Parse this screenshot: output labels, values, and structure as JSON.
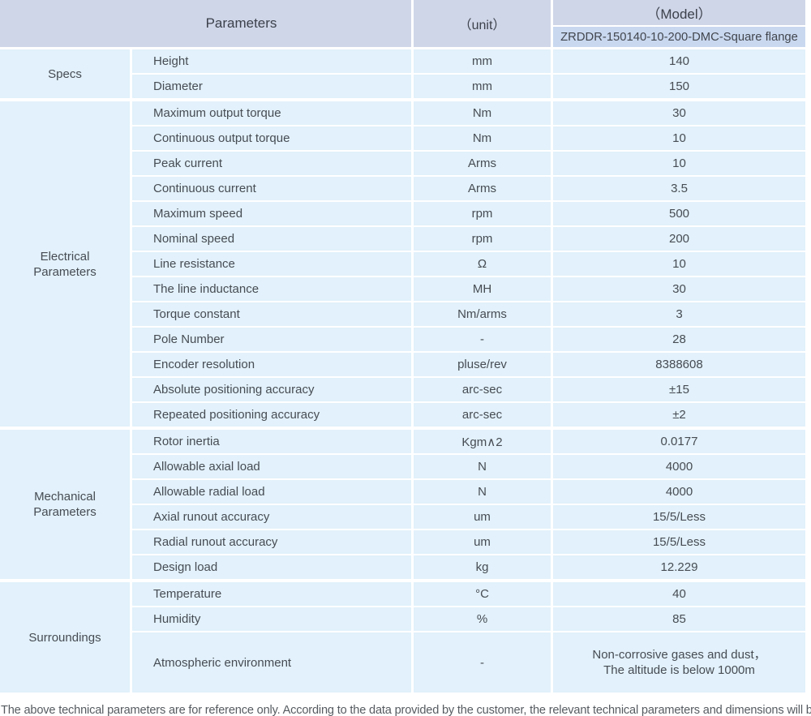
{
  "header": {
    "parameters_label": "Parameters",
    "unit_label": "（unit）",
    "model_label": "（Model）",
    "model_value": "ZRDDR-150140-10-200-DMC-Square flange"
  },
  "groups": [
    {
      "name": "Specs",
      "rows": [
        {
          "param": "Height",
          "unit": "mm",
          "value": "140"
        },
        {
          "param": "Diameter",
          "unit": "mm",
          "value": "150"
        }
      ]
    },
    {
      "name": "Electrical\nParameters",
      "rows": [
        {
          "param": "Maximum output torque",
          "unit": "Nm",
          "value": "30"
        },
        {
          "param": "Continuous output torque",
          "unit": "Nm",
          "value": "10"
        },
        {
          "param": "Peak current",
          "unit": "Arms",
          "value": "10"
        },
        {
          "param": "Continuous current",
          "unit": "Arms",
          "value": "3.5"
        },
        {
          "param": "Maximum speed",
          "unit": "rpm",
          "value": "500"
        },
        {
          "param": "Nominal speed",
          "unit": "rpm",
          "value": "200"
        },
        {
          "param": "Line resistance",
          "unit": "Ω",
          "value": "10"
        },
        {
          "param": "The line inductance",
          "unit": "MH",
          "value": "30"
        },
        {
          "param": "Torque constant",
          "unit": "Nm/arms",
          "value": "3"
        },
        {
          "param": "Pole Number",
          "unit": "-",
          "value": "28"
        },
        {
          "param": "Encoder resolution",
          "unit": "pluse/rev",
          "value": "8388608"
        },
        {
          "param": "Absolute positioning accuracy",
          "unit": "arc-sec",
          "value": "±15"
        },
        {
          "param": "Repeated positioning accuracy",
          "unit": "arc-sec",
          "value": "±2"
        }
      ]
    },
    {
      "name": "Mechanical\nParameters",
      "rows": [
        {
          "param": "Rotor inertia",
          "unit": "Kgm∧2",
          "value": "0.0177"
        },
        {
          "param": "Allowable axial load",
          "unit": "N",
          "value": "4000"
        },
        {
          "param": "Allowable radial load",
          "unit": "N",
          "value": "4000"
        },
        {
          "param": "Axial runout accuracy",
          "unit": "um",
          "value": "15/5/Less"
        },
        {
          "param": "Radial runout accuracy",
          "unit": "um",
          "value": "15/5/Less"
        },
        {
          "param": "Design load",
          "unit": "kg",
          "value": "12.229"
        }
      ]
    },
    {
      "name": "Surroundings",
      "rows": [
        {
          "param": "Temperature",
          "unit": "°C",
          "value": "40"
        },
        {
          "param": "Humidity",
          "unit": "%",
          "value": "85"
        },
        {
          "param": "Atmospheric environment",
          "unit": "-",
          "value": "Non-corrosive gases and dust，\nThe altitude is below 1000m"
        }
      ]
    }
  ],
  "footer": {
    "note": "The above technical parameters are for reference only. According to the data provided by the customer, the relevant technical parameters and dimensions will be issued."
  },
  "colors": {
    "header_bg": "#cfd6e8",
    "model_row_bg": "#c9d8ef",
    "cell_bg": "#e2f1fb",
    "separator": "#ffffff",
    "text": "#474c53",
    "footer_text": "#565b60"
  }
}
